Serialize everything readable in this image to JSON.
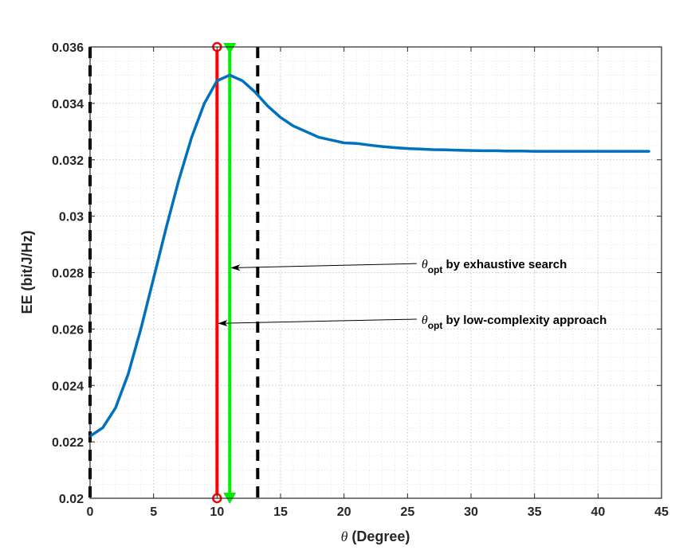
{
  "chart_data": {
    "type": "line",
    "xlabel_symbol": "θ",
    "xlabel_text": " (Degree)",
    "ylabel": "EE (bit/J/Hz)",
    "xlim": [
      0,
      45
    ],
    "ylim": [
      0.02,
      0.036
    ],
    "xticks": [
      0,
      5,
      10,
      15,
      20,
      25,
      30,
      35,
      40,
      45
    ],
    "xtick_labels": [
      "0",
      "5",
      "10",
      "15",
      "20",
      "25",
      "30",
      "35",
      "40",
      "45"
    ],
    "yticks": [
      0.02,
      0.022,
      0.024,
      0.026,
      0.028,
      0.03,
      0.032,
      0.034,
      0.036
    ],
    "ytick_labels": [
      "0.02",
      "0.022",
      "0.024",
      "0.026",
      "0.028",
      "0.03",
      "0.032",
      "0.034",
      "0.036"
    ],
    "grid": true,
    "minor_grid": true,
    "series": [
      {
        "color": "#0072bd",
        "x": [
          0,
          1,
          2,
          3,
          4,
          5,
          6,
          7,
          8,
          9,
          10,
          11,
          12,
          13,
          14,
          15,
          16,
          17,
          18,
          19,
          20,
          21,
          22,
          23,
          24,
          25,
          26,
          27,
          28,
          29,
          30,
          31,
          32,
          33,
          34,
          35,
          36,
          37,
          38,
          39,
          40,
          41,
          42,
          43,
          44
        ],
        "y": [
          0.0222,
          0.0225,
          0.0232,
          0.0244,
          0.026,
          0.0278,
          0.0296,
          0.0313,
          0.0328,
          0.034,
          0.0348,
          0.035,
          0.0348,
          0.0344,
          0.0339,
          0.0335,
          0.0332,
          0.033,
          0.0328,
          0.0327,
          0.0326,
          0.03258,
          0.03252,
          0.03247,
          0.03243,
          0.0324,
          0.03238,
          0.03236,
          0.03235,
          0.03234,
          0.03233,
          0.03232,
          0.03232,
          0.03231,
          0.03231,
          0.0323,
          0.0323,
          0.0323,
          0.0323,
          0.0323,
          0.0323,
          0.0323,
          0.0323,
          0.0323,
          0.0323
        ]
      }
    ],
    "vertical_lines": [
      {
        "x": 0,
        "color": "#000000",
        "style": "dashed"
      },
      {
        "x": 13.2,
        "color": "#000000",
        "style": "dashed"
      },
      {
        "x": 10,
        "color": "#ff0000",
        "style": "solid",
        "marker": "circle"
      },
      {
        "x": 11,
        "color": "#00ee00",
        "style": "solid",
        "marker": "triangle-down"
      }
    ],
    "annotations": [
      {
        "symbol": "θ",
        "subscript": "opt",
        "text": " by exhaustive search",
        "text_x": 26.1,
        "text_y": 0.02815,
        "arrow_to_x": 11,
        "arrow_to_y": 0.02817
      },
      {
        "symbol": "θ",
        "subscript": "opt",
        "text": " by low-complexity approach",
        "text_x": 26.1,
        "text_y": 0.02618,
        "arrow_to_x": 10,
        "arrow_to_y": 0.0262
      }
    ]
  }
}
